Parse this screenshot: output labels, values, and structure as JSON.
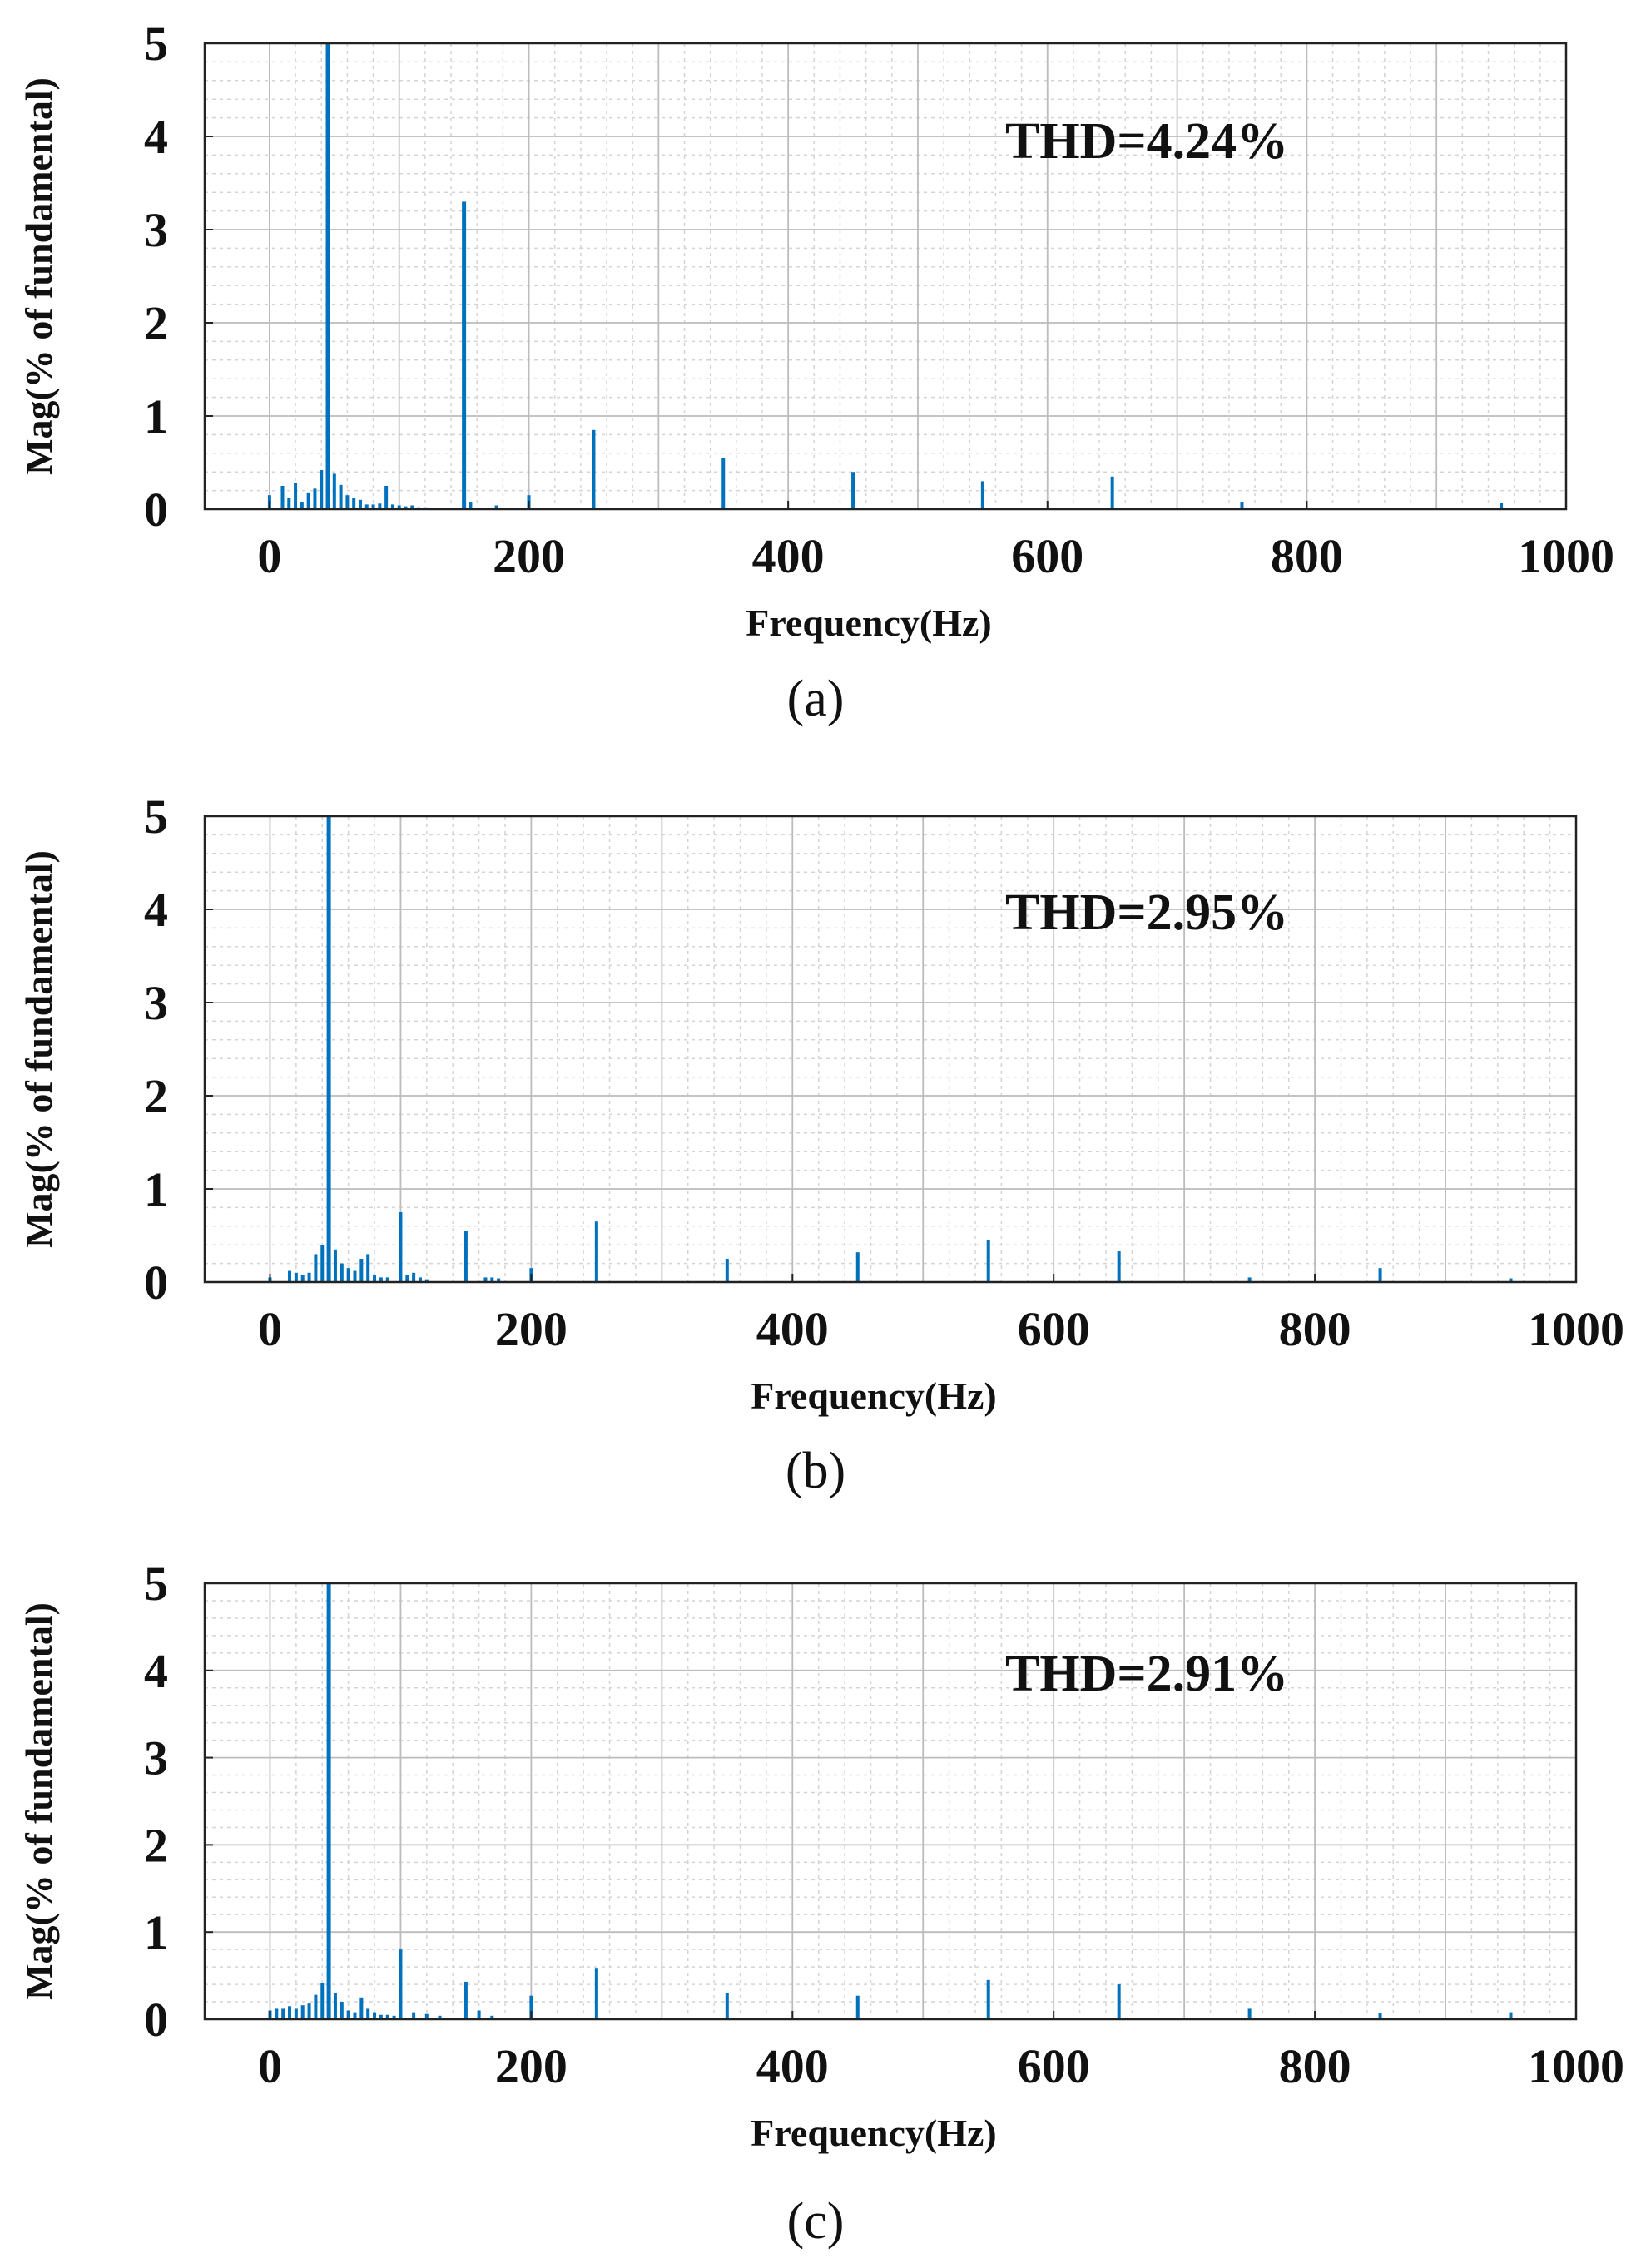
{
  "chart_data": [
    {
      "type": "bar",
      "panel": "(a)",
      "title": "",
      "xlabel": "Frequency(Hz)",
      "ylabel": "Mag(% of fundamental)",
      "xlim": [
        -50,
        1000
      ],
      "ylim": [
        0,
        5
      ],
      "xticks": [
        "0",
        "200",
        "400",
        "600",
        "800",
        "1000"
      ],
      "yticks": [
        "0",
        "1",
        "2",
        "3",
        "4",
        "5"
      ],
      "grid": true,
      "annotation": "THD=4.24%",
      "caption": "(a)",
      "x": [
        0,
        10,
        15,
        20,
        25,
        30,
        35,
        40,
        45,
        50,
        55,
        60,
        65,
        70,
        75,
        80,
        85,
        90,
        95,
        100,
        105,
        110,
        115,
        120,
        150,
        155,
        175,
        200,
        250,
        350,
        450,
        550,
        650,
        750,
        950
      ],
      "values": [
        0.15,
        0.25,
        0.12,
        0.28,
        0.08,
        0.18,
        0.22,
        0.42,
        5.0,
        0.38,
        0.26,
        0.15,
        0.12,
        0.1,
        0.05,
        0.05,
        0.06,
        0.25,
        0.05,
        0.04,
        0.03,
        0.04,
        0.02,
        0.02,
        3.3,
        0.08,
        0.04,
        0.15,
        0.85,
        0.55,
        0.4,
        0.3,
        0.35,
        0.08,
        0.07
      ]
    },
    {
      "type": "bar",
      "panel": "(b)",
      "title": "",
      "xlabel": "Frequency(Hz)",
      "ylabel": "Mag(% of fundamental)",
      "xlim": [
        -50,
        1000
      ],
      "ylim": [
        0,
        5
      ],
      "xticks": [
        "0",
        "200",
        "400",
        "600",
        "800",
        "1000"
      ],
      "yticks": [
        "0",
        "1",
        "2",
        "3",
        "4",
        "5"
      ],
      "grid": true,
      "annotation": "THD=2.95%",
      "caption": "(b)",
      "x": [
        0,
        15,
        20,
        25,
        30,
        35,
        40,
        45,
        50,
        55,
        60,
        65,
        70,
        75,
        80,
        85,
        90,
        100,
        105,
        110,
        115,
        120,
        150,
        165,
        170,
        175,
        200,
        250,
        350,
        450,
        550,
        650,
        750,
        850,
        950
      ],
      "values": [
        0.05,
        0.12,
        0.1,
        0.08,
        0.1,
        0.3,
        0.4,
        5.0,
        0.35,
        0.2,
        0.15,
        0.12,
        0.25,
        0.3,
        0.08,
        0.05,
        0.05,
        0.75,
        0.08,
        0.1,
        0.05,
        0.03,
        0.55,
        0.05,
        0.05,
        0.04,
        0.15,
        0.65,
        0.25,
        0.32,
        0.45,
        0.33,
        0.05,
        0.15,
        0.04
      ]
    },
    {
      "type": "bar",
      "panel": "(c)",
      "title": "",
      "xlabel": "Frequency(Hz)",
      "ylabel": "Mag(% of fundamental)",
      "xlim": [
        -50,
        1000
      ],
      "ylim": [
        0,
        5
      ],
      "xticks": [
        "0",
        "200",
        "400",
        "600",
        "800",
        "1000"
      ],
      "yticks": [
        "0",
        "1",
        "2",
        "3",
        "4",
        "5"
      ],
      "grid": true,
      "annotation": "THD=2.91%",
      "caption": "(c)",
      "x": [
        0,
        5,
        10,
        15,
        20,
        25,
        30,
        35,
        40,
        45,
        50,
        55,
        60,
        65,
        70,
        75,
        80,
        85,
        90,
        95,
        100,
        110,
        120,
        130,
        150,
        160,
        170,
        200,
        250,
        350,
        450,
        550,
        650,
        750,
        850,
        950
      ],
      "values": [
        0.1,
        0.12,
        0.12,
        0.15,
        0.12,
        0.16,
        0.18,
        0.28,
        0.42,
        5.0,
        0.3,
        0.2,
        0.1,
        0.08,
        0.25,
        0.12,
        0.08,
        0.05,
        0.05,
        0.04,
        0.8,
        0.08,
        0.06,
        0.04,
        0.43,
        0.1,
        0.04,
        0.27,
        0.58,
        0.3,
        0.27,
        0.45,
        0.4,
        0.12,
        0.07,
        0.08
      ]
    }
  ]
}
